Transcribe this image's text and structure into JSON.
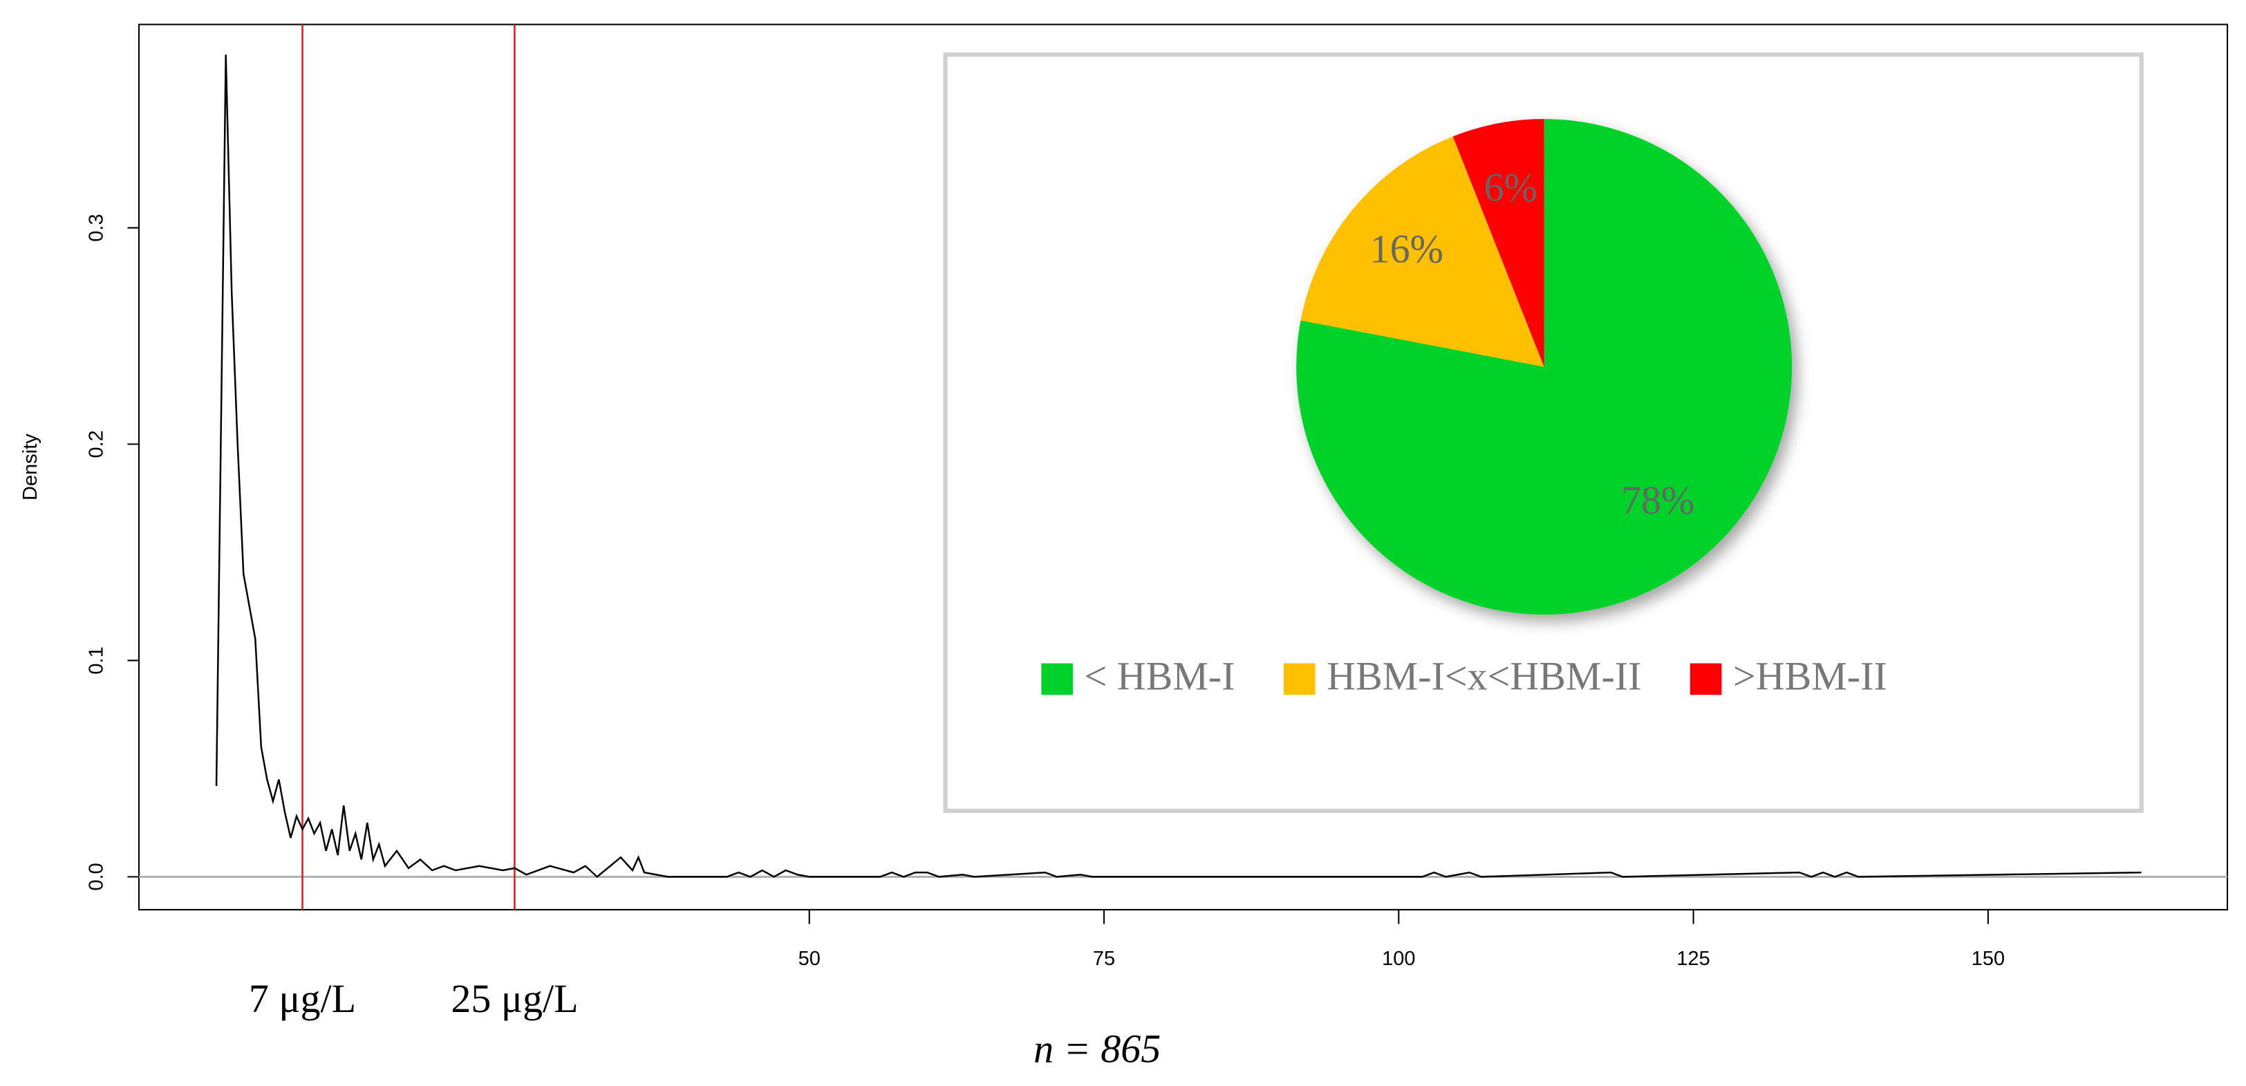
{
  "chart_data": [
    {
      "type": "line",
      "ylabel": "Density",
      "xlabel": "n = 865",
      "xlim": [
        -6.87,
        170.3
      ],
      "ylim": [
        -0.0152,
        0.394
      ],
      "xticks": [
        50,
        75,
        100,
        125,
        150
      ],
      "yticks": [
        {
          "value": 0,
          "label": "0.0"
        },
        0.1,
        0.2,
        0.3
      ],
      "annotations": [
        {
          "value": 7,
          "label": "7 μg/L"
        },
        {
          "value": 25,
          "label": "25 μg/L"
        }
      ],
      "series": [
        {
          "color": "#000000",
          "x": [
            -0.3,
            0.5,
            1,
            1.5,
            2,
            3,
            3.5,
            4,
            4.5,
            5,
            5.5,
            6,
            6.5,
            7,
            7.5,
            8,
            8.5,
            9,
            9.5,
            10,
            10.5,
            11,
            11.5,
            12,
            12.5,
            13,
            13.5,
            14,
            15,
            16,
            17,
            18,
            19,
            20,
            22,
            24,
            25,
            26,
            28,
            30,
            31,
            32,
            34,
            35,
            35.5,
            36,
            38,
            43,
            44,
            45,
            46,
            47,
            48,
            49,
            50,
            56,
            57,
            58,
            59,
            60,
            61,
            63,
            64,
            70,
            71,
            73,
            74,
            102,
            103,
            104,
            106,
            107,
            118,
            119,
            134,
            135,
            136,
            137,
            138,
            139,
            163
          ],
          "values": [
            0.042,
            0.38,
            0.27,
            0.2,
            0.14,
            0.11,
            0.06,
            0.045,
            0.035,
            0.045,
            0.03,
            0.018,
            0.028,
            0.022,
            0.027,
            0.02,
            0.025,
            0.012,
            0.022,
            0.01,
            0.033,
            0.012,
            0.02,
            0.008,
            0.025,
            0.008,
            0.015,
            0.005,
            0.012,
            0.004,
            0.008,
            0.003,
            0.005,
            0.003,
            0.005,
            0.003,
            0.004,
            0.001,
            0.005,
            0.002,
            0.005,
            0,
            0.009,
            0.003,
            0.009,
            0.002,
            0,
            0,
            0.002,
            0,
            0.003,
            0,
            0.003,
            0.001,
            0,
            0,
            0.002,
            0,
            0.002,
            0.002,
            0,
            0.001,
            0,
            0.002,
            0,
            0.001,
            0,
            0,
            0.002,
            0,
            0.002,
            0,
            0.002,
            0,
            0.002,
            0,
            0.002,
            0,
            0.002,
            0,
            0.002
          ]
        }
      ]
    },
    {
      "type": "pie",
      "categories": [
        "< HBM-I",
        "HBM-I<x<HBM-II",
        ">HBM-II"
      ],
      "values": [
        78,
        16,
        6
      ],
      "value_labels": [
        "78%",
        "16%",
        "6%"
      ],
      "colors": [
        "#00d22b",
        "#ffc000",
        "#ff0000"
      ]
    }
  ]
}
